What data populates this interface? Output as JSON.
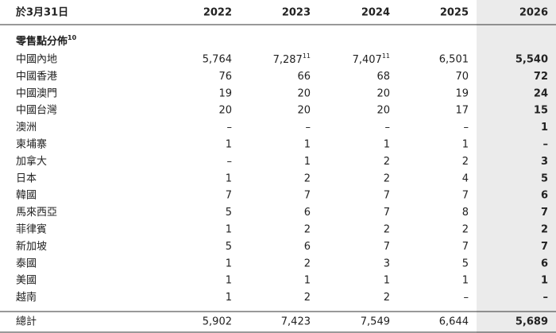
{
  "header": {
    "label": "於3月31日",
    "years": [
      "2022",
      "2023",
      "2024",
      "2025",
      "2026"
    ]
  },
  "section": {
    "title": "零售點分佈",
    "note": "10"
  },
  "rows": [
    {
      "label": "中國內地",
      "cells": [
        "5,764",
        {
          "text": "7,287",
          "note": "11"
        },
        {
          "text": "7,407",
          "note": "11"
        },
        "6,501",
        "5,540"
      ]
    },
    {
      "label": "中國香港",
      "cells": [
        "76",
        "66",
        "68",
        "70",
        "72"
      ]
    },
    {
      "label": "中國澳門",
      "cells": [
        "19",
        "20",
        "20",
        "19",
        "24"
      ]
    },
    {
      "label": "中國台灣",
      "cells": [
        "20",
        "20",
        "20",
        "17",
        "15"
      ]
    },
    {
      "label": "澳洲",
      "cells": [
        "–",
        "–",
        "–",
        "–",
        "1"
      ]
    },
    {
      "label": "柬埔寨",
      "cells": [
        "1",
        "1",
        "1",
        "1",
        "–"
      ]
    },
    {
      "label": "加拿大",
      "cells": [
        "–",
        "1",
        "2",
        "2",
        "3"
      ]
    },
    {
      "label": "日本",
      "cells": [
        "1",
        "2",
        "2",
        "4",
        "5"
      ]
    },
    {
      "label": "韓國",
      "cells": [
        "7",
        "7",
        "7",
        "7",
        "6"
      ]
    },
    {
      "label": "馬來西亞",
      "cells": [
        "5",
        "6",
        "7",
        "8",
        "7"
      ]
    },
    {
      "label": "菲律賓",
      "cells": [
        "1",
        "2",
        "2",
        "2",
        "2"
      ]
    },
    {
      "label": "新加坡",
      "cells": [
        "5",
        "6",
        "7",
        "7",
        "7"
      ]
    },
    {
      "label": "泰國",
      "cells": [
        "1",
        "2",
        "3",
        "5",
        "6"
      ]
    },
    {
      "label": "美國",
      "cells": [
        "1",
        "1",
        "1",
        "1",
        "1"
      ]
    },
    {
      "label": "越南",
      "cells": [
        "1",
        "2",
        "2",
        "–",
        "–"
      ]
    }
  ],
  "total": {
    "label": "總計",
    "cells": [
      "5,902",
      "7,423",
      "7,549",
      "6,644",
      "5,689"
    ]
  }
}
